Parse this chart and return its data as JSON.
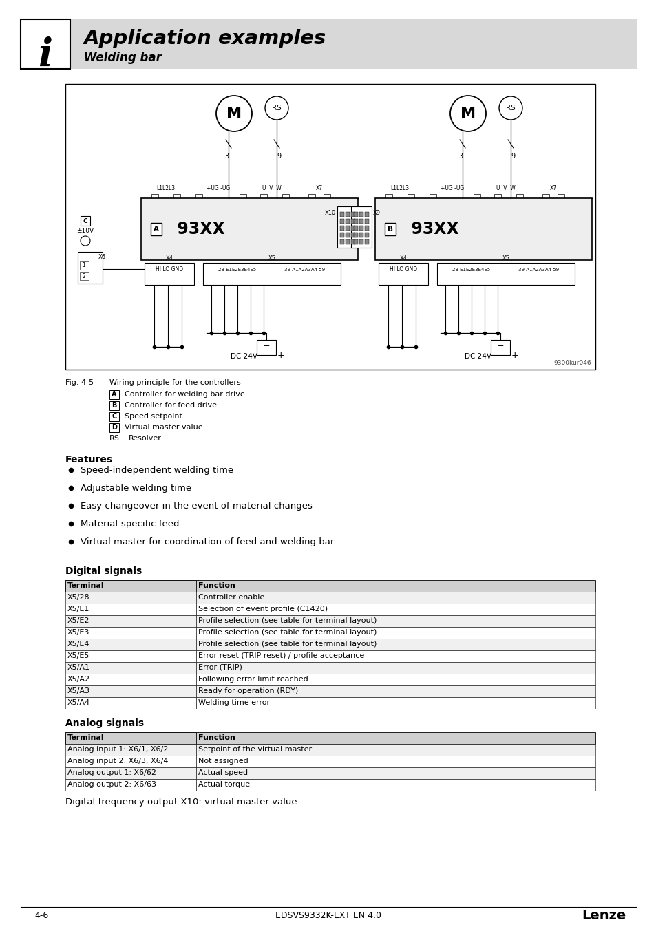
{
  "title": "Application examples",
  "subtitle": "Welding bar",
  "bg_color": "#ffffff",
  "header_bg": "#d8d8d8",
  "fig_label": "Fig. 4-5",
  "fig_caption": "Wiring principle for the controllers",
  "legend_items": [
    [
      "A",
      "Controller for welding bar drive"
    ],
    [
      "B",
      "Controller for feed drive"
    ],
    [
      "C",
      "Speed setpoint"
    ],
    [
      "D",
      "Virtual master value"
    ],
    [
      "RS",
      "Resolver"
    ]
  ],
  "features_title": "Features",
  "features": [
    "Speed-independent welding time",
    "Adjustable welding time",
    "Easy changeover in the event of material changes",
    "Material-specific feed",
    "Virtual master for coordination of feed and welding bar"
  ],
  "digital_title": "Digital signals",
  "digital_headers": [
    "Terminal",
    "Function"
  ],
  "digital_rows": [
    [
      "X5/28",
      "Controller enable"
    ],
    [
      "X5/E1",
      "Selection of event profile (C1420)"
    ],
    [
      "X5/E2",
      "Profile selection (see table for terminal layout)"
    ],
    [
      "X5/E3",
      "Profile selection (see table for terminal layout)"
    ],
    [
      "X5/E4",
      "Profile selection (see table for terminal layout)"
    ],
    [
      "X5/E5",
      "Error reset (TRIP reset) / profile acceptance"
    ],
    [
      "X5/A1",
      "Error (TRIP)"
    ],
    [
      "X5/A2",
      "Following error limit reached"
    ],
    [
      "X5/A3",
      "Ready for operation (RDY)"
    ],
    [
      "X5/A4",
      "Welding time error"
    ]
  ],
  "analog_title": "Analog signals",
  "analog_headers": [
    "Terminal",
    "Function"
  ],
  "analog_rows": [
    [
      "Analog input 1: X6/1, X6/2",
      "Setpoint of the virtual master"
    ],
    [
      "Analog input 2: X6/3, X6/4",
      "Not assigned"
    ],
    [
      "Analog output 1: X6/62",
      "Actual speed"
    ],
    [
      "Analog output 2: X6/63",
      "Actual torque"
    ]
  ],
  "footer_left": "4-6",
  "footer_center": "EDSVS9332K-EXT EN 4.0",
  "footer_right": "Lenze",
  "digital_freq_note": "Digital frequency output X10: virtual master value",
  "table_header_bg": "#d0d0d0",
  "table_row_bg": "#f0f0f0",
  "table_alt_bg": "#ffffff",
  "table_border": "#000000"
}
